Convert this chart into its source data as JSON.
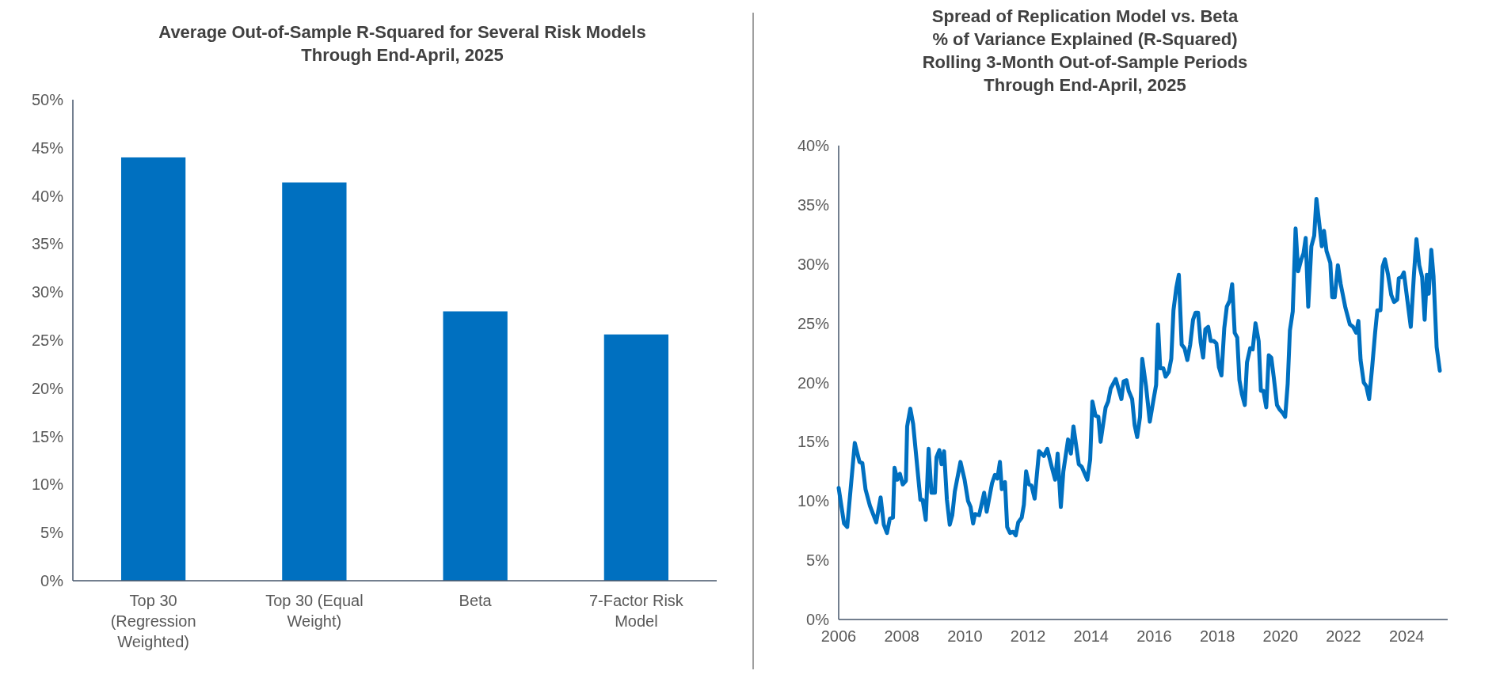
{
  "chart_data": [
    {
      "type": "bar",
      "title": "Average Out-of-Sample R-Squared for Several Risk Models\nThrough End-April, 2025",
      "categories": [
        "Top 30 (Regression Weighted)",
        "Top 30 (Equal Weight)",
        "Beta",
        "7-Factor Risk Model"
      ],
      "values": [
        44,
        41.4,
        28,
        25.6
      ],
      "color": "#0070c0",
      "ylim": [
        0,
        50
      ],
      "yticks": [
        {
          "value": 0,
          "label": "0%"
        },
        {
          "value": 5,
          "label": "5%"
        },
        {
          "value": 10,
          "label": "10%"
        },
        {
          "value": 15,
          "label": "15%"
        },
        {
          "value": 20,
          "label": "20%"
        },
        {
          "value": 25,
          "label": "25%"
        },
        {
          "value": 30,
          "label": "30%"
        },
        {
          "value": 35,
          "label": "35%"
        },
        {
          "value": 40,
          "label": "40%"
        },
        {
          "value": 45,
          "label": "45%"
        },
        {
          "value": 50,
          "label": "50%"
        }
      ],
      "grid": false
    },
    {
      "type": "line",
      "title": "Spread of Replication Model vs. Beta\n% of Variance Explained (R-Squared)\nRolling 3-Month Out-of-Sample Periods\nThrough End-April, 2025",
      "xlim": [
        2006,
        2025.3
      ],
      "xticks": [
        2006,
        2008,
        2010,
        2012,
        2014,
        2016,
        2018,
        2020,
        2022,
        2024
      ],
      "ylim": [
        0,
        40
      ],
      "yticks": [
        {
          "value": 0,
          "label": "0%"
        },
        {
          "value": 5,
          "label": "5%"
        },
        {
          "value": 10,
          "label": "10%"
        },
        {
          "value": 15,
          "label": "15%"
        },
        {
          "value": 20,
          "label": "20%"
        },
        {
          "value": 25,
          "label": "25%"
        },
        {
          "value": 30,
          "label": "30%"
        },
        {
          "value": 35,
          "label": "35%"
        },
        {
          "value": 40,
          "label": "40%"
        }
      ],
      "grid": false,
      "marker": "none",
      "line_style": "solid",
      "series": [
        {
          "color": "#0070c0",
          "x": [
            2006.0,
            2006.17,
            2006.27,
            2006.51,
            2006.66,
            2006.75,
            2006.85,
            2006.99,
            2007.19,
            2007.33,
            2007.43,
            2007.53,
            2007.62,
            2007.72,
            2007.77,
            2007.86,
            2007.94,
            2008.03,
            2008.13,
            2008.17,
            2008.27,
            2008.36,
            2008.59,
            2008.66,
            2008.76,
            2008.85,
            2008.94,
            2009.05,
            2009.1,
            2009.19,
            2009.26,
            2009.34,
            2009.43,
            2009.52,
            2009.6,
            2009.68,
            2009.86,
            2009.99,
            2010.1,
            2010.18,
            2010.26,
            2010.32,
            2010.45,
            2010.61,
            2010.69,
            2010.86,
            2010.95,
            2011.03,
            2011.11,
            2011.17,
            2011.27,
            2011.34,
            2011.43,
            2011.53,
            2011.61,
            2011.69,
            2011.8,
            2011.87,
            2011.94,
            2012.03,
            2012.11,
            2012.21,
            2012.35,
            2012.5,
            2012.61,
            2012.74,
            2012.86,
            2012.94,
            2013.04,
            2013.12,
            2013.27,
            2013.36,
            2013.44,
            2013.61,
            2013.7,
            2013.88,
            2013.97,
            2014.04,
            2014.14,
            2014.23,
            2014.3,
            2014.46,
            2014.54,
            2014.62,
            2014.78,
            2014.96,
            2015.03,
            2015.12,
            2015.19,
            2015.3,
            2015.38,
            2015.46,
            2015.55,
            2015.62,
            2015.74,
            2015.86,
            2015.98,
            2016.06,
            2016.12,
            2016.19,
            2016.29,
            2016.36,
            2016.46,
            2016.54,
            2016.61,
            2016.7,
            2016.78,
            2016.87,
            2016.96,
            2017.05,
            2017.14,
            2017.23,
            2017.31,
            2017.39,
            2017.47,
            2017.55,
            2017.62,
            2017.71,
            2017.79,
            2017.89,
            2017.97,
            2018.05,
            2018.13,
            2018.22,
            2018.3,
            2018.39,
            2018.47,
            2018.55,
            2018.63,
            2018.7,
            2018.78,
            2018.87,
            2018.94,
            2019.04,
            2019.12,
            2019.21,
            2019.31,
            2019.38,
            2019.46,
            2019.55,
            2019.63,
            2019.71,
            2019.79,
            2019.89,
            2019.98,
            2020.08,
            2020.15,
            2020.23,
            2020.3,
            2020.39,
            2020.48,
            2020.56,
            2020.66,
            2020.73,
            2020.8,
            2020.88,
            2020.98,
            2021.07,
            2021.14,
            2021.24,
            2021.31,
            2021.38,
            2021.46,
            2021.58,
            2021.64,
            2021.72,
            2021.82,
            2021.91,
            2022.06,
            2022.2,
            2022.3,
            2022.4,
            2022.47,
            2022.54,
            2022.64,
            2022.72,
            2022.81,
            2022.91,
            2023.0,
            2023.07,
            2023.17,
            2023.24,
            2023.31,
            2023.41,
            2023.51,
            2023.6,
            2023.7,
            2023.75,
            2023.84,
            2023.91,
            2024.01,
            2024.13,
            2024.23,
            2024.31,
            2024.4,
            2024.49,
            2024.57,
            2024.64,
            2024.7,
            2024.78,
            2024.85,
            2024.95,
            2025.05
          ],
          "values": [
            11.1,
            8.1,
            7.8,
            14.9,
            13.3,
            13.2,
            11.0,
            9.6,
            8.2,
            10.3,
            8.0,
            7.3,
            8.5,
            8.6,
            12.8,
            11.8,
            12.3,
            11.4,
            11.7,
            16.3,
            17.8,
            16.5,
            10.1,
            10.1,
            8.4,
            14.4,
            10.7,
            10.7,
            13.7,
            14.3,
            13.1,
            14.2,
            10.1,
            8.0,
            8.8,
            10.8,
            13.3,
            11.8,
            10.0,
            9.5,
            8.1,
            8.9,
            8.8,
            10.7,
            9.1,
            11.5,
            12.2,
            11.9,
            13.3,
            11.0,
            11.6,
            7.8,
            7.3,
            7.4,
            7.1,
            8.2,
            8.6,
            9.7,
            12.5,
            11.4,
            11.3,
            10.2,
            14.2,
            13.8,
            14.4,
            13.0,
            11.8,
            14.0,
            9.5,
            12.5,
            15.2,
            14.0,
            16.3,
            13.1,
            12.9,
            11.8,
            13.5,
            18.4,
            17.2,
            17.1,
            15.0,
            17.9,
            18.4,
            19.5,
            20.3,
            18.6,
            20.1,
            20.2,
            19.3,
            18.6,
            16.4,
            15.4,
            17.1,
            22.0,
            19.7,
            16.7,
            18.6,
            19.8,
            24.9,
            21.2,
            21.2,
            20.5,
            20.9,
            22.0,
            26.1,
            28.0,
            29.1,
            23.2,
            22.9,
            21.9,
            23.2,
            25.3,
            25.9,
            25.9,
            23.4,
            22.1,
            24.5,
            24.7,
            23.5,
            23.5,
            23.3,
            21.3,
            20.6,
            24.6,
            26.4,
            26.9,
            28.3,
            24.2,
            23.8,
            20.2,
            19.0,
            18.1,
            21.7,
            22.9,
            22.8,
            25.0,
            23.5,
            19.3,
            19.3,
            17.9,
            22.3,
            22.1,
            20.4,
            18.1,
            17.7,
            17.4,
            17.1,
            19.9,
            24.4,
            26.0,
            33.0,
            29.4,
            30.4,
            30.9,
            32.2,
            26.4,
            31.5,
            32.4,
            35.5,
            33.2,
            31.5,
            32.8,
            31.1,
            30.1,
            27.2,
            27.2,
            29.9,
            28.3,
            26.3,
            24.9,
            24.7,
            24.2,
            25.2,
            21.9,
            20.0,
            19.7,
            18.6,
            21.4,
            24.2,
            26.1,
            26.1,
            29.8,
            30.4,
            29.1,
            27.4,
            26.8,
            27.0,
            28.8,
            28.9,
            29.3,
            27.2,
            24.7,
            29.1,
            32.1,
            29.9,
            28.9,
            25.3,
            29.1,
            27.5,
            31.2,
            29.0,
            23.0,
            21.0
          ]
        }
      ]
    }
  ]
}
